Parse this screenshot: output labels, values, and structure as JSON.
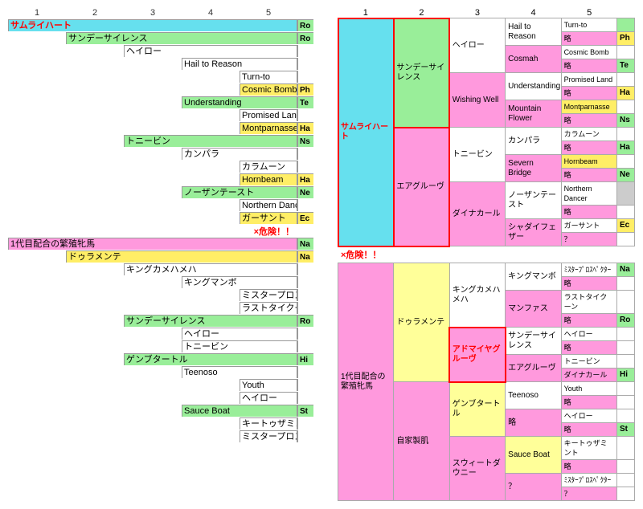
{
  "colors": {
    "cyan": "#66e0ee",
    "magenta": "#ff99dd",
    "green": "#99ee99",
    "yellow": "#ffff99",
    "ygold": "#ffee66",
    "white": "#ffffff",
    "gray": "#cccccc",
    "grid": "#999999"
  },
  "left": {
    "header": [
      1,
      2,
      3,
      4,
      5
    ],
    "chart1_width": 360,
    "chart1": [
      {
        "indent": 0,
        "span": 5,
        "label": "サムライハート",
        "bg": "cyan",
        "marker": "Ro",
        "marker_bg": "green",
        "label_color": "#ff0000",
        "label_weight": "bold"
      },
      {
        "indent": 1,
        "span": 4,
        "label": "サンデーサイレンス",
        "bg": "green",
        "marker": "Ro",
        "marker_bg": "green"
      },
      {
        "indent": 2,
        "span": 3,
        "label": "ヘイロー",
        "bg": "white"
      },
      {
        "indent": 3,
        "span": 2,
        "label": "Hail to Reason",
        "bg": "white"
      },
      {
        "indent": 4,
        "span": 1,
        "label": "Turn-to",
        "bg": "white"
      },
      {
        "indent": 4,
        "span": 1,
        "label": "Cosmic Bomb",
        "bg": "ygold",
        "marker": "Ph",
        "marker_bg": "ygold"
      },
      {
        "indent": 3,
        "span": 2,
        "label": "Understanding",
        "bg": "green",
        "marker": "Te",
        "marker_bg": "green"
      },
      {
        "indent": 4,
        "span": 1,
        "label": "Promised Land",
        "bg": "white"
      },
      {
        "indent": 4,
        "span": 1,
        "label": "Montparnasse",
        "bg": "ygold",
        "marker": "Ha",
        "marker_bg": "ygold"
      },
      {
        "indent": 2,
        "span": 3,
        "label": "トニービン",
        "bg": "green",
        "marker": "Ns",
        "marker_bg": "green"
      },
      {
        "indent": 3,
        "span": 2,
        "label": "カンパラ",
        "bg": "white"
      },
      {
        "indent": 4,
        "span": 1,
        "label": "カラムーン",
        "bg": "white"
      },
      {
        "indent": 4,
        "span": 1,
        "label": "Hornbeam",
        "bg": "ygold",
        "marker": "Ha",
        "marker_bg": "ygold"
      },
      {
        "indent": 3,
        "span": 2,
        "label": "ノーザンテースト",
        "bg": "green",
        "marker": "Ne",
        "marker_bg": "green"
      },
      {
        "indent": 4,
        "span": 1,
        "label": "Northern Dancer",
        "bg": "white"
      },
      {
        "indent": 4,
        "span": 1,
        "label": "ガーサント",
        "bg": "ygold",
        "marker": "Ec",
        "marker_bg": "ygold"
      }
    ],
    "danger_label": "×危険！！",
    "chart2": [
      {
        "indent": 0,
        "span": 5,
        "label": "1代目配合の繁殖牝馬",
        "bg": "magenta",
        "marker": "Na",
        "marker_bg": "green"
      },
      {
        "indent": 1,
        "span": 4,
        "label": "ドゥラメンテ",
        "bg": "ygold",
        "marker": "Na",
        "marker_bg": "ygold"
      },
      {
        "indent": 2,
        "span": 3,
        "label": "キングカメハメハ",
        "bg": "white"
      },
      {
        "indent": 3,
        "span": 2,
        "label": "キングマンボ",
        "bg": "white"
      },
      {
        "indent": 4,
        "span": 1,
        "label": "ミスタープロスペクター",
        "bg": "white"
      },
      {
        "indent": 4,
        "span": 1,
        "label": "ラストタイクーン",
        "bg": "white"
      },
      {
        "indent": 2,
        "span": 3,
        "label": "サンデーサイレンス",
        "bg": "green",
        "marker": "Ro",
        "marker_bg": "green"
      },
      {
        "indent": 3,
        "span": 2,
        "label": "ヘイロー",
        "bg": "white"
      },
      {
        "indent": 3,
        "span": 2,
        "label": "トニービン",
        "bg": "white"
      },
      {
        "indent": 2,
        "span": 3,
        "label": "ゲンブタートル",
        "bg": "green",
        "marker": "Hi",
        "marker_bg": "green"
      },
      {
        "indent": 3,
        "span": 2,
        "label": "Teenoso",
        "bg": "white"
      },
      {
        "indent": 4,
        "span": 1,
        "label": "Youth",
        "bg": "white"
      },
      {
        "indent": 4,
        "span": 1,
        "label": "ヘイロー",
        "bg": "white"
      },
      {
        "indent": 3,
        "span": 2,
        "label": "Sauce Boat",
        "bg": "green",
        "marker": "St",
        "marker_bg": "green"
      },
      {
        "indent": 4,
        "span": 1,
        "label": "キートゥザミント",
        "bg": "white"
      },
      {
        "indent": 4,
        "span": 1,
        "label": "ミスタープロスペクター",
        "bg": "white"
      }
    ]
  },
  "right": {
    "header": [
      1,
      2,
      3,
      4,
      5
    ],
    "danger_label": "×危険！！",
    "tree1": {
      "root": {
        "label": "サムライハート",
        "bg": "cyan",
        "label_color": "#ff0000",
        "label_weight": "bold",
        "redbox": true
      },
      "gen2": [
        {
          "label": "サンデーサイレンス",
          "bg": "green",
          "redbox": true
        },
        {
          "label": "エアグルーヴ",
          "bg": "magenta",
          "redbox": true
        }
      ],
      "gen3": [
        {
          "label": "ヘイロー",
          "bg": "white"
        },
        {
          "label": "Wishing Well",
          "bg": "magenta"
        },
        {
          "label": "トニービン",
          "bg": "white"
        },
        {
          "label": "ダイナカール",
          "bg": "magenta"
        }
      ],
      "gen4": [
        {
          "label": "Hail to Reason",
          "bg": "white"
        },
        {
          "label": "Cosmah",
          "bg": "magenta"
        },
        {
          "label": "Understanding",
          "bg": "white"
        },
        {
          "label": "Mountain Flower",
          "bg": "magenta"
        },
        {
          "label": "カンパラ",
          "bg": "white"
        },
        {
          "label": "Severn Bridge",
          "bg": "magenta"
        },
        {
          "label": "ノーザンテースト",
          "bg": "white"
        },
        {
          "label": "シャダイフェザー",
          "bg": "magenta"
        }
      ],
      "gen5": [
        {
          "label": "Turn-to",
          "bg": "white",
          "marker": "",
          "marker_bg": "green"
        },
        {
          "label": "略",
          "bg": "magenta",
          "marker": "Ph",
          "marker_bg": "ygold"
        },
        {
          "label": "Cosmic Bomb",
          "bg": "white",
          "marker": "",
          "marker_bg": ""
        },
        {
          "label": "略",
          "bg": "magenta",
          "marker": "Te",
          "marker_bg": "green"
        },
        {
          "label": "Promised Land",
          "bg": "white",
          "marker": "",
          "marker_bg": ""
        },
        {
          "label": "略",
          "bg": "magenta",
          "marker": "Ha",
          "marker_bg": "ygold"
        },
        {
          "label": "Montparnasse",
          "bg": "ygold",
          "marker": "",
          "marker_bg": ""
        },
        {
          "label": "略",
          "bg": "magenta",
          "marker": "Ns",
          "marker_bg": "green"
        },
        {
          "label": "カラムーン",
          "bg": "white",
          "marker": "",
          "marker_bg": ""
        },
        {
          "label": "略",
          "bg": "magenta",
          "marker": "Ha",
          "marker_bg": "green"
        },
        {
          "label": "Hornbeam",
          "bg": "ygold",
          "marker": "",
          "marker_bg": ""
        },
        {
          "label": "略",
          "bg": "magenta",
          "marker": "Ne",
          "marker_bg": "green"
        },
        {
          "label": "Northern Dancer",
          "bg": "white",
          "marker": "",
          "marker_bg": "gray"
        },
        {
          "label": "略",
          "bg": "magenta",
          "marker": "",
          "marker_bg": ""
        },
        {
          "label": "ガーサント",
          "bg": "white",
          "marker": "Ec",
          "marker_bg": "ygold"
        },
        {
          "label": "？",
          "bg": "magenta",
          "marker": "",
          "marker_bg": ""
        }
      ]
    },
    "tree2": {
      "root": {
        "label": "1代目配合の繁殖牝馬",
        "bg": "magenta"
      },
      "gen2": [
        {
          "label": "ドゥラメンテ",
          "bg": "yellow"
        },
        {
          "label": "自家製肌",
          "bg": "magenta"
        }
      ],
      "gen3": [
        {
          "label": "キングカメハメハ",
          "bg": "white"
        },
        {
          "label": "アドマイヤグルーヴ",
          "bg": "magenta",
          "label_color": "#ff0000",
          "label_weight": "bold",
          "redbox": true
        },
        {
          "label": "ゲンブタートル",
          "bg": "yellow"
        },
        {
          "label": "スウィートダウニー",
          "bg": "magenta"
        }
      ],
      "gen4": [
        {
          "label": "キングマンボ",
          "bg": "white"
        },
        {
          "label": "マンファス",
          "bg": "magenta"
        },
        {
          "label": "サンデーサイレンス",
          "bg": "white"
        },
        {
          "label": "エアグルーヴ",
          "bg": "magenta"
        },
        {
          "label": "Teenoso",
          "bg": "white"
        },
        {
          "label": "略",
          "bg": "magenta"
        },
        {
          "label": "Sauce Boat",
          "bg": "yellow"
        },
        {
          "label": "？",
          "bg": "magenta"
        }
      ],
      "gen5": [
        {
          "label": "ﾐｽﾀｰﾌﾟﾛｽﾍﾟｸﾀｰ",
          "bg": "white",
          "marker": "Na",
          "marker_bg": "green"
        },
        {
          "label": "略",
          "bg": "magenta",
          "marker": "",
          "marker_bg": ""
        },
        {
          "label": "ラストタイクーン",
          "bg": "white",
          "marker": "",
          "marker_bg": ""
        },
        {
          "label": "略",
          "bg": "magenta",
          "marker": "Ro",
          "marker_bg": "green"
        },
        {
          "label": "ヘイロー",
          "bg": "white",
          "marker": "",
          "marker_bg": ""
        },
        {
          "label": "略",
          "bg": "magenta",
          "marker": "",
          "marker_bg": ""
        },
        {
          "label": "トニービン",
          "bg": "white",
          "marker": "",
          "marker_bg": ""
        },
        {
          "label": "ダイナカール",
          "bg": "magenta",
          "marker": "Hi",
          "marker_bg": "green"
        },
        {
          "label": "Youth",
          "bg": "white",
          "marker": "",
          "marker_bg": ""
        },
        {
          "label": "略",
          "bg": "magenta",
          "marker": "",
          "marker_bg": ""
        },
        {
          "label": "ヘイロー",
          "bg": "white",
          "marker": "",
          "marker_bg": ""
        },
        {
          "label": "略",
          "bg": "magenta",
          "marker": "St",
          "marker_bg": "green"
        },
        {
          "label": "キートゥザミント",
          "bg": "white",
          "marker": "",
          "marker_bg": ""
        },
        {
          "label": "略",
          "bg": "magenta",
          "marker": "",
          "marker_bg": ""
        },
        {
          "label": "ﾐｽﾀｰﾌﾟﾛｽﾍﾟｸﾀｰ",
          "bg": "white",
          "marker": "",
          "marker_bg": ""
        },
        {
          "label": "？",
          "bg": "magenta",
          "marker": "",
          "marker_bg": ""
        }
      ]
    }
  }
}
